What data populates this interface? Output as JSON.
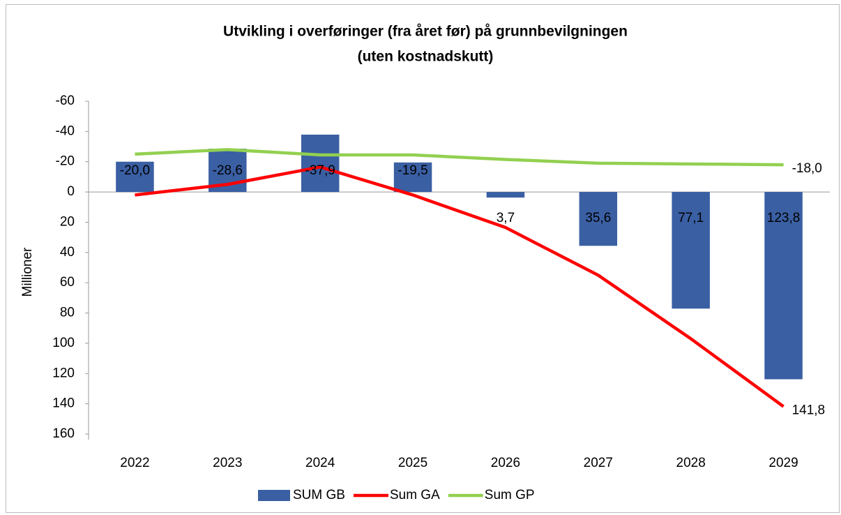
{
  "chart_data": {
    "type": "bar-line",
    "title": "Utvikling i overføringer (fra året før) på grunnbevilgningen",
    "subtitle": "(uten kostnadskutt)",
    "y_label": "Millioner",
    "categories": [
      "2022",
      "2023",
      "2024",
      "2025",
      "2026",
      "2027",
      "2028",
      "2029"
    ],
    "series": [
      {
        "name": "SUM GB",
        "type": "bar",
        "color": "#3a5fa3",
        "values": [
          -20.0,
          -28.6,
          -37.9,
          -19.5,
          3.7,
          35.6,
          77.1,
          123.8
        ],
        "value_labels": [
          "-20,0",
          "-28,6",
          "-37,9",
          "-19,5",
          "3,7",
          "35,6",
          "77,1",
          "123,8"
        ]
      },
      {
        "name": "Sum GA",
        "type": "line",
        "color": "#ff0000",
        "values": [
          2,
          -5,
          -16.5,
          2,
          23.5,
          55,
          97,
          141.8
        ],
        "value_labels": [
          null,
          null,
          null,
          null,
          null,
          null,
          null,
          "141,8"
        ]
      },
      {
        "name": "Sum GP",
        "type": "line",
        "color": "#92d050",
        "values": [
          -25,
          -28,
          -24.5,
          -24.5,
          -21.5,
          -19,
          -18.5,
          -18.0
        ],
        "value_labels": [
          null,
          null,
          null,
          null,
          null,
          null,
          null,
          "-18,0"
        ]
      }
    ],
    "ylim": [
      -60,
      160
    ],
    "y_reversed": true,
    "yticks": [
      -60,
      -40,
      -20,
      0,
      20,
      40,
      60,
      80,
      100,
      120,
      140,
      160
    ],
    "grid": false,
    "legend": "bottom"
  }
}
